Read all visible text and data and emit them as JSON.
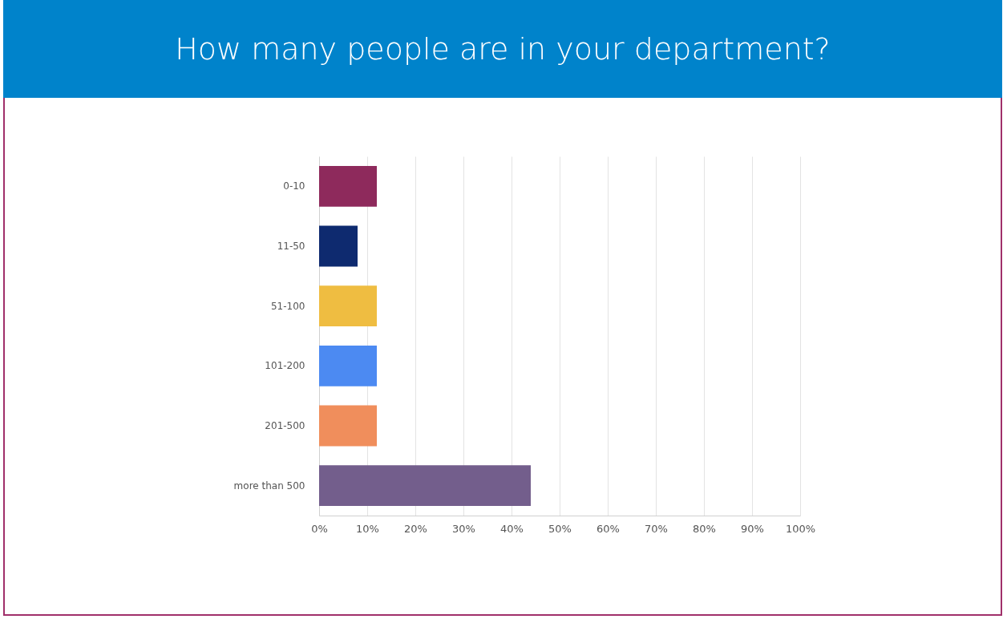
{
  "chart_data": {
    "type": "bar",
    "orientation": "horizontal",
    "title": "How many people are in your department?",
    "categories": [
      "0-10",
      "11-50",
      "51-100",
      "101-200",
      "201-500",
      "more than 500"
    ],
    "values": [
      12,
      8,
      12,
      12,
      12,
      44
    ],
    "colors": [
      "#8e2a5c",
      "#0e2a6f",
      "#efbd41",
      "#4c8af2",
      "#f08e5c",
      "#735e8c"
    ],
    "xlim": [
      0,
      100
    ],
    "xticks": [
      {
        "value": 0,
        "label": "0%"
      },
      {
        "value": 10,
        "label": "10%"
      },
      {
        "value": 20,
        "label": "20%"
      },
      {
        "value": 30,
        "label": "30%"
      },
      {
        "value": 40,
        "label": "40%"
      },
      {
        "value": 50,
        "label": "50%"
      },
      {
        "value": 60,
        "label": "60%"
      },
      {
        "value": 70,
        "label": "70%"
      },
      {
        "value": 80,
        "label": "80%"
      },
      {
        "value": 90,
        "label": "90%"
      },
      {
        "value": 100,
        "label": "100%"
      }
    ],
    "grid": "x"
  }
}
